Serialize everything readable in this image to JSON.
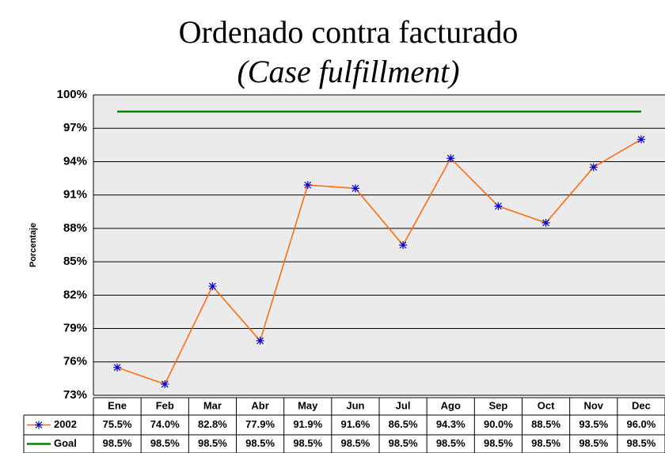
{
  "chart_data": {
    "type": "line",
    "title": "Ordenado contra facturado",
    "subtitle": "(Case fulfillment)",
    "y_label": "Porcentaje",
    "categories": [
      "Ene",
      "Feb",
      "Mar",
      "Abr",
      "May",
      "Jun",
      "Jul",
      "Ago",
      "Sep",
      "Oct",
      "Nov",
      "Dec"
    ],
    "series": [
      {
        "name": "2002",
        "color": "#ff6600",
        "marker_color": "#0000cc",
        "values": [
          75.5,
          74.0,
          82.8,
          77.9,
          91.9,
          91.6,
          86.5,
          94.3,
          90.0,
          88.5,
          93.5,
          96.0
        ],
        "value_labels": [
          "75.5%",
          "74.0%",
          "82.8%",
          "77.9%",
          "91.9%",
          "91.6%",
          "86.5%",
          "94.3%",
          "90.0%",
          "88.5%",
          "93.5%",
          "96.0%"
        ]
      },
      {
        "name": "Goal",
        "color": "#008000",
        "values": [
          98.5,
          98.5,
          98.5,
          98.5,
          98.5,
          98.5,
          98.5,
          98.5,
          98.5,
          98.5,
          98.5,
          98.5
        ],
        "value_labels": [
          "98.5%",
          "98.5%",
          "98.5%",
          "98.5%",
          "98.5%",
          "98.5%",
          "98.5%",
          "98.5%",
          "98.5%",
          "98.5%",
          "98.5%",
          "98.5%"
        ]
      }
    ],
    "ylim": [
      73,
      100
    ],
    "yticks": [
      {
        "value": 73,
        "label": "73%"
      },
      {
        "value": 76,
        "label": "76%"
      },
      {
        "value": 79,
        "label": "79%"
      },
      {
        "value": 82,
        "label": "82%"
      },
      {
        "value": 85,
        "label": "85%"
      },
      {
        "value": 88,
        "label": "88%"
      },
      {
        "value": 91,
        "label": "91%"
      },
      {
        "value": 94,
        "label": "94%"
      },
      {
        "value": 97,
        "label": "97%"
      },
      {
        "value": 100,
        "label": "100%"
      }
    ],
    "grid": true
  }
}
